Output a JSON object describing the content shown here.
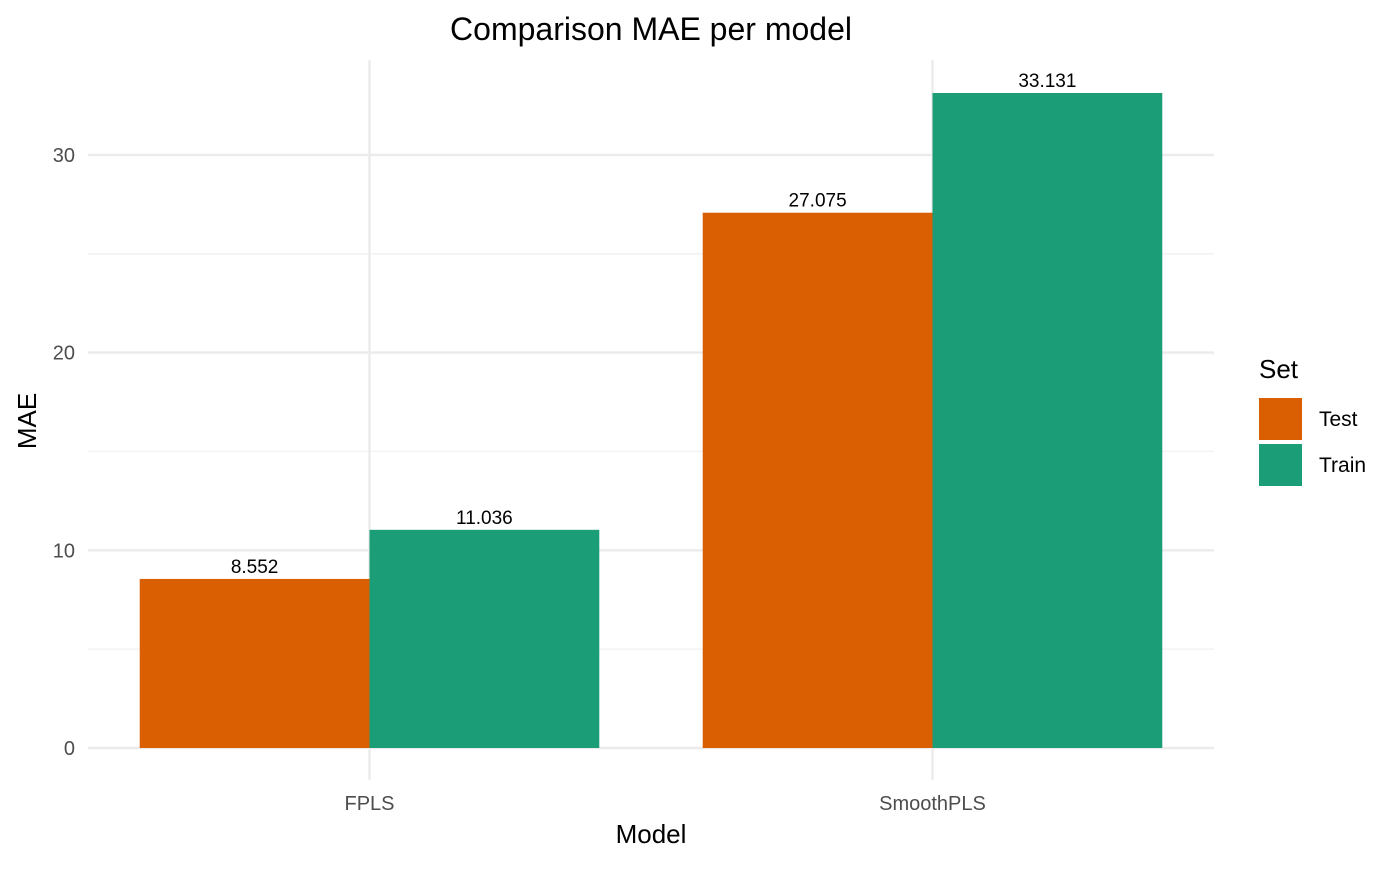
{
  "chart_data": {
    "type": "bar",
    "title": "Comparison MAE per model",
    "xlabel": "Model",
    "ylabel": "MAE",
    "categories": [
      "FPLS",
      "SmoothPLS"
    ],
    "series": [
      {
        "name": "Test",
        "color": "#D95F02",
        "values": [
          8.552,
          27.075
        ],
        "labels": [
          "8.552",
          "27.075"
        ]
      },
      {
        "name": "Train",
        "color": "#1B9E77",
        "values": [
          11.036,
          33.131
        ],
        "labels": [
          "11.036",
          "33.131"
        ]
      }
    ],
    "ylim": [
      0,
      34.8
    ],
    "yticks": [
      0,
      10,
      20,
      30
    ],
    "yticks_minor": [
      5,
      15,
      25
    ],
    "grid": true,
    "legend": {
      "title": "Set",
      "position": "right"
    }
  }
}
